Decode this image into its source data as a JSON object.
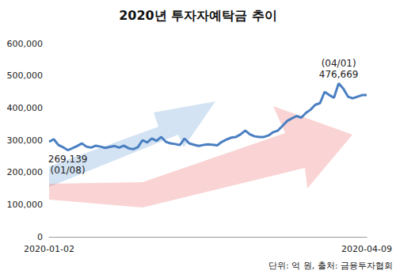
{
  "chart_data": {
    "type": "line",
    "title": "2020년 투자자예탁금 추이",
    "note": "단위: 억 원, 출처: 금융투자협회",
    "categories": [
      "2020-01-02",
      null,
      null,
      null,
      null,
      null,
      null,
      null,
      null,
      null,
      null,
      null,
      null,
      null,
      null,
      null,
      null,
      null,
      null,
      null,
      null,
      null,
      null,
      null,
      null,
      null,
      null,
      null,
      null,
      null,
      null,
      null,
      null,
      null,
      null,
      null,
      null,
      null,
      null,
      null,
      null,
      null,
      null,
      null,
      null,
      null,
      null,
      null,
      null,
      null,
      null,
      null,
      null,
      null,
      null,
      null,
      null,
      null,
      null,
      null,
      null,
      null,
      null,
      null,
      null,
      null,
      null,
      null,
      "2020-04-09"
    ],
    "values": [
      295000,
      303000,
      285000,
      278000,
      269139,
      275000,
      282000,
      290000,
      280000,
      277000,
      283000,
      280000,
      276000,
      279000,
      282000,
      277000,
      283000,
      275000,
      272000,
      278000,
      300000,
      293000,
      305000,
      298000,
      310000,
      295000,
      290000,
      288000,
      285000,
      305000,
      290000,
      286000,
      282000,
      285000,
      287000,
      286000,
      284000,
      295000,
      302000,
      308000,
      310000,
      318000,
      330000,
      318000,
      312000,
      310000,
      310000,
      315000,
      325000,
      330000,
      345000,
      360000,
      368000,
      375000,
      370000,
      385000,
      395000,
      410000,
      415000,
      450000,
      440000,
      432000,
      476669,
      460000,
      435000,
      430000,
      435000,
      440000,
      440000
    ],
    "color": "#4a7fc1",
    "annotations": [
      {
        "index": 4,
        "lines": [
          "269,139",
          "(01/08)"
        ]
      },
      {
        "index": 62,
        "lines": [
          "(04/01)",
          "476,669"
        ]
      }
    ],
    "ylim": [
      0,
      600000
    ],
    "yticks": [
      0,
      {
        "value": 100000,
        "label": "100,000"
      },
      {
        "value": 200000,
        "label": "200,000"
      },
      {
        "value": 300000,
        "label": "300,000"
      },
      {
        "value": 400000,
        "label": "400,000"
      },
      {
        "value": 500000,
        "label": "500,000"
      },
      {
        "value": 600000,
        "label": "600,000"
      }
    ],
    "grid": false
  }
}
